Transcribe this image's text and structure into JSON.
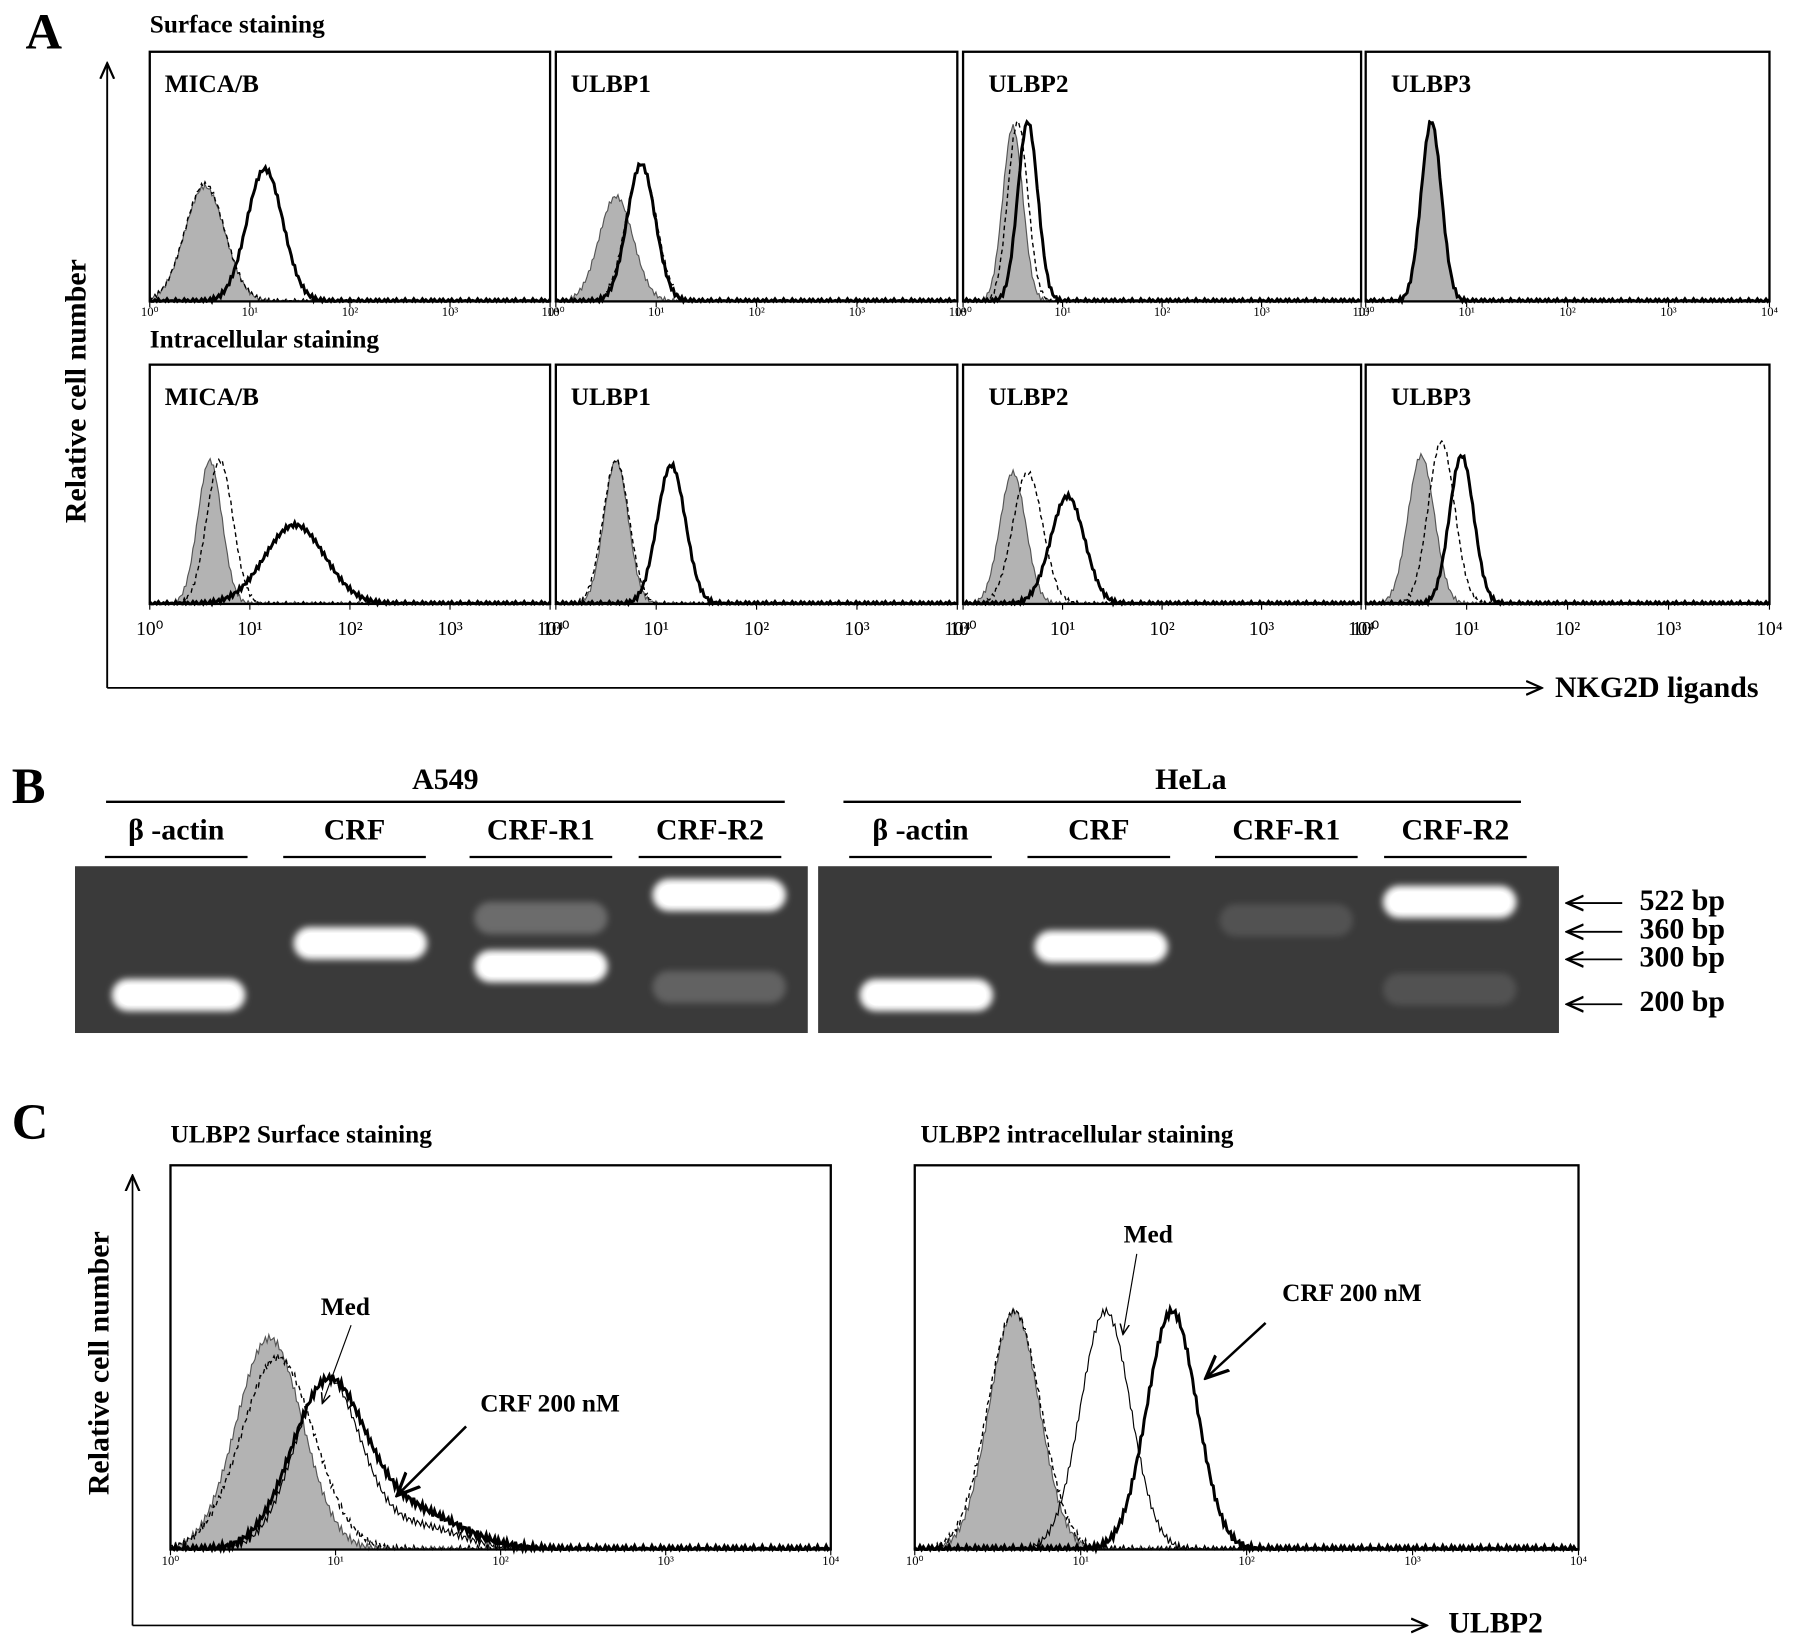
{
  "panel_a": {
    "label": "A",
    "surface_title": "Surface staining",
    "intracellular_title": "Intracellular staining",
    "y_axis": "Relative cell number",
    "x_axis": "NKG2D ligands",
    "panels": [
      "MICA/B",
      "ULBP1",
      "ULBP2",
      "ULBP3"
    ],
    "ticks": [
      "10⁰",
      "10¹",
      "10²",
      "10³",
      "10⁴"
    ]
  },
  "panel_b": {
    "label": "B",
    "groups": [
      {
        "name": "A549",
        "lanes": [
          "β -actin",
          "CRF",
          "CRF-R1",
          "CRF-R2"
        ]
      },
      {
        "name": "HeLa",
        "lanes": [
          "β -actin",
          "CRF",
          "CRF-R1",
          "CRF-R2"
        ]
      }
    ],
    "markers": [
      "522 bp",
      "360 bp",
      "300 bp",
      "200 bp"
    ]
  },
  "panel_c": {
    "label": "C",
    "y_axis": "Relative cell number",
    "x_axis": "ULBP2",
    "ticks": [
      "10⁰",
      "10¹",
      "10²",
      "10³",
      "10⁴"
    ],
    "plots": [
      {
        "title": "ULBP2 Surface  staining",
        "med": "Med",
        "crf": "CRF 200 nM"
      },
      {
        "title": "ULBP2 intracellular staining",
        "med": "Med",
        "crf": "CRF 200 nM"
      }
    ]
  }
}
